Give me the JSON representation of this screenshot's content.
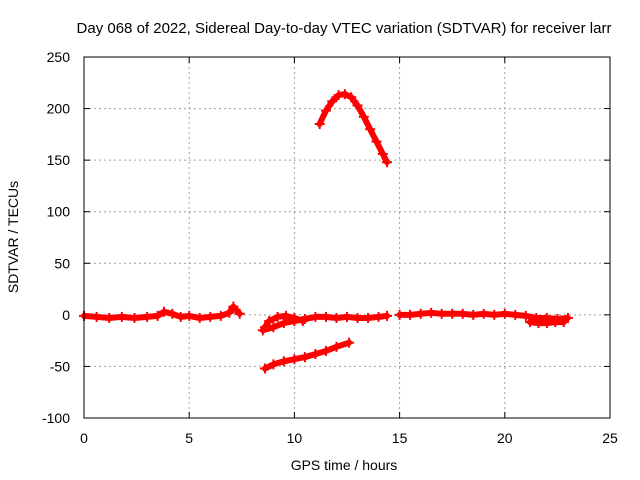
{
  "chart_data": {
    "type": "scatter",
    "title": "Day 068 of 2022, Sidereal Day-to-day VTEC variation (SDTVAR) for receiver larr",
    "xlabel": "GPS time / hours",
    "ylabel": "SDTVAR / TECUs",
    "xlim": [
      0,
      25
    ],
    "ylim": [
      -100,
      250
    ],
    "x_ticks": [
      0,
      5,
      10,
      15,
      20,
      25
    ],
    "y_ticks": [
      -100,
      -50,
      0,
      50,
      100,
      150,
      200,
      250
    ],
    "grid": true,
    "color": "#ff0000",
    "series": [
      {
        "segment": "track-1",
        "x": [
          0.0,
          0.6,
          1.2,
          1.8,
          2.4,
          3.0,
          3.5,
          3.8,
          4.2,
          4.6,
          5.0,
          5.5,
          6.0,
          6.5,
          6.9,
          7.1,
          7.4
        ],
        "y": [
          -1,
          -2,
          -3,
          -2,
          -3,
          -2,
          -1,
          3,
          1,
          -2,
          -1,
          -3,
          -2,
          -1,
          2,
          8,
          1
        ]
      },
      {
        "segment": "track-2",
        "x": [
          8.5,
          9.0,
          9.5,
          10.0,
          10.5,
          11.0,
          11.5,
          12.0,
          12.5,
          13.0,
          13.5,
          14.0,
          14.4
        ],
        "y": [
          -15,
          -12,
          -8,
          -6,
          -4,
          -2,
          -2,
          -3,
          -2,
          -3,
          -3,
          -2,
          -1
        ]
      },
      {
        "segment": "track-3",
        "x": [
          8.6,
          8.8,
          9.2,
          9.6,
          10.0,
          10.4
        ],
        "y": [
          -12,
          -6,
          -2,
          -1,
          -3,
          -6
        ]
      },
      {
        "segment": "track-4",
        "x": [
          8.6,
          9.0,
          9.5,
          10.0,
          10.5,
          11.0,
          11.5,
          12.0,
          12.6
        ],
        "y": [
          -52,
          -48,
          -45,
          -43,
          -41,
          -38,
          -35,
          -31,
          -27
        ]
      },
      {
        "segment": "track-5",
        "x": [
          11.2,
          11.5,
          11.8,
          12.1,
          12.4,
          12.7,
          13.0,
          13.3,
          13.6,
          13.9,
          14.2,
          14.4
        ],
        "y": [
          185,
          198,
          207,
          213,
          214,
          211,
          203,
          192,
          180,
          168,
          156,
          148
        ]
      },
      {
        "segment": "track-6",
        "x": [
          15.0,
          15.5,
          16.0,
          16.5,
          17.0,
          17.5,
          18.0,
          18.5,
          19.0,
          19.5,
          20.0,
          20.5,
          21.0,
          21.5,
          22.0,
          22.5,
          23.0
        ],
        "y": [
          0,
          0,
          1,
          2,
          1,
          1,
          1,
          0,
          1,
          0,
          1,
          0,
          -1,
          -3,
          -3,
          -4,
          -3
        ]
      },
      {
        "segment": "track-7",
        "x": [
          21.2,
          21.6,
          22.0,
          22.4,
          22.8
        ],
        "y": [
          -7,
          -8,
          -8,
          -7,
          -7
        ]
      }
    ]
  }
}
